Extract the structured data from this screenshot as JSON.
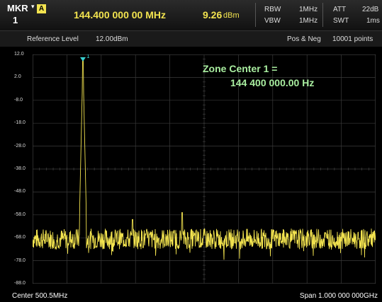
{
  "marker": {
    "label": "MKR",
    "caret": "▾",
    "number": "1",
    "trace_badge": "A",
    "frequency": "144.400 000 00 MHz",
    "amplitude": "9.26",
    "amplitude_unit": "dBm"
  },
  "params": {
    "rbw_label": "RBW",
    "rbw_value": "1MHz",
    "vbw_label": "VBW",
    "vbw_value": "1MHz",
    "att_label": "ATT",
    "att_value": "22dB",
    "swt_label": "SWT",
    "swt_value": "1ms"
  },
  "subheader": {
    "ref_label": "Reference Level",
    "ref_value": "12.00dBm",
    "detector": "Pos & Neg",
    "points": "10001 points"
  },
  "y_ticks": [
    "12.0",
    "2.0",
    "-8.0",
    "-18.0",
    "-28.0",
    "-38.0",
    "-48.0",
    "-58.0",
    "-68.0",
    "-78.0",
    "-88.0"
  ],
  "annotation": {
    "line1": "Zone Center 1 =",
    "line2": "144 400 000.00 Hz"
  },
  "footer": {
    "center": "Center 500.5MHz",
    "span": "Span 1.000 000 000GHz"
  },
  "colors": {
    "trace": "#f2e34f",
    "marker": "#3ad0d0",
    "grid": "#3a3a3a",
    "annotation": "#a9eea0"
  }
}
